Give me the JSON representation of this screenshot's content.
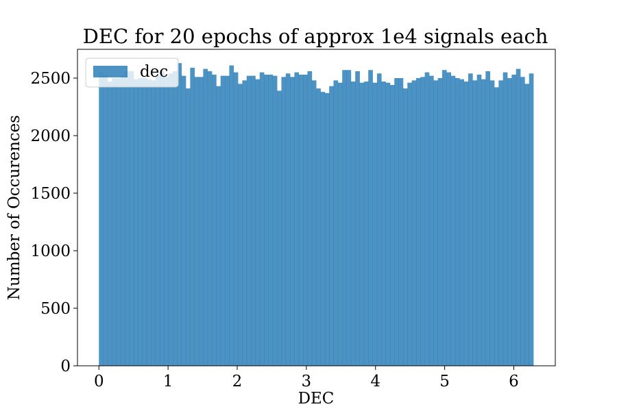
{
  "chart_data": {
    "type": "bar",
    "title": "DEC for 20 epochs of approx 1e4 signals each",
    "xlabel": "DEC",
    "ylabel": "Number of Occurences",
    "xlim": [
      -0.31,
      6.6
    ],
    "ylim": [
      0,
      2750
    ],
    "xticks": [
      0,
      1,
      2,
      3,
      4,
      5,
      6
    ],
    "yticks": [
      0,
      500,
      1000,
      1500,
      2000,
      2500
    ],
    "bar_color": "#1f77b4",
    "bar_opacity": 0.8,
    "legend_position": "upper-left",
    "series": [
      {
        "name": "dec",
        "bin_range": [
          0,
          6.2832
        ],
        "bins": 100,
        "values": [
          2550,
          2530,
          2470,
          2500,
          2500,
          2520,
          2560,
          2560,
          2490,
          2500,
          2500,
          2490,
          2480,
          2520,
          2560,
          2510,
          2540,
          2560,
          2630,
          2520,
          2410,
          2590,
          2510,
          2510,
          2580,
          2560,
          2530,
          2430,
          2520,
          2520,
          2610,
          2550,
          2450,
          2480,
          2520,
          2520,
          2490,
          2550,
          2530,
          2530,
          2520,
          2390,
          2510,
          2540,
          2510,
          2550,
          2530,
          2530,
          2560,
          2480,
          2410,
          2380,
          2370,
          2430,
          2480,
          2460,
          2570,
          2570,
          2470,
          2560,
          2460,
          2470,
          2570,
          2460,
          2540,
          2470,
          2460,
          2440,
          2500,
          2500,
          2410,
          2460,
          2480,
          2500,
          2510,
          2550,
          2520,
          2480,
          2500,
          2570,
          2550,
          2520,
          2500,
          2490,
          2470,
          2540,
          2480,
          2530,
          2490,
          2560,
          2480,
          2420,
          2480,
          2550,
          2500,
          2530,
          2580,
          2510,
          2450,
          2540
        ]
      }
    ]
  }
}
